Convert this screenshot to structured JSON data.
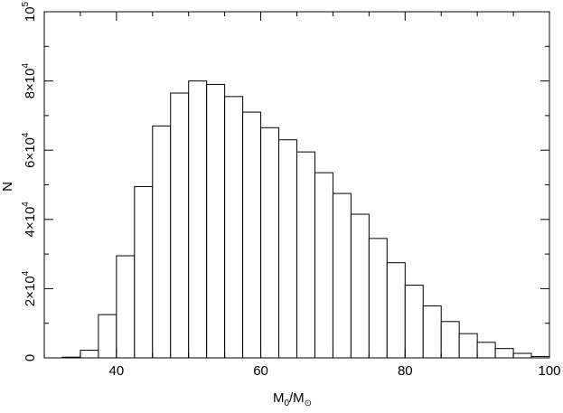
{
  "chart_data": {
    "type": "bar",
    "title": "",
    "xlabel": {
      "main": "M",
      "sub1": "0",
      "separator": "/M",
      "sub2": "⊙"
    },
    "ylabel": "N",
    "xlim": [
      30,
      100
    ],
    "ylim": [
      0,
      100000
    ],
    "bin_width": 2.5,
    "bin_starts": [
      32.5,
      35,
      37.5,
      40,
      42.5,
      45,
      47.5,
      50,
      52.5,
      55,
      57.5,
      60,
      62.5,
      65,
      67.5,
      70,
      72.5,
      75,
      77.5,
      80,
      82.5,
      85,
      87.5,
      90,
      92.5,
      95,
      97.5
    ],
    "values": [
      200,
      2200,
      12500,
      29500,
      49500,
      67000,
      76500,
      80000,
      79000,
      75500,
      71000,
      66500,
      63000,
      59500,
      53500,
      47500,
      41500,
      34500,
      27500,
      21000,
      15000,
      10500,
      7000,
      4500,
      2700,
      1300,
      400
    ],
    "x_ticks": [
      {
        "value": 40,
        "label": "40"
      },
      {
        "value": 60,
        "label": "60"
      },
      {
        "value": 80,
        "label": "80"
      },
      {
        "value": 100,
        "label": "100"
      }
    ],
    "y_ticks": [
      {
        "value": 0,
        "label": "0",
        "mantissa": "0",
        "exp": ""
      },
      {
        "value": 20000,
        "label": "2×10⁴",
        "mantissa": "2×10",
        "exp": "4"
      },
      {
        "value": 40000,
        "label": "4×10⁴",
        "mantissa": "4×10",
        "exp": "4"
      },
      {
        "value": 60000,
        "label": "6×10⁴",
        "mantissa": "6×10",
        "exp": "4"
      },
      {
        "value": 80000,
        "label": "8×10⁴",
        "mantissa": "8×10",
        "exp": "4"
      },
      {
        "value": 100000,
        "label": "10⁵",
        "mantissa": "10",
        "exp": "5"
      }
    ],
    "x_minor_step": 5,
    "y_minor_step": 10000,
    "grid": false,
    "bar_fill": "#ffffff",
    "bar_stroke": "#000000"
  }
}
